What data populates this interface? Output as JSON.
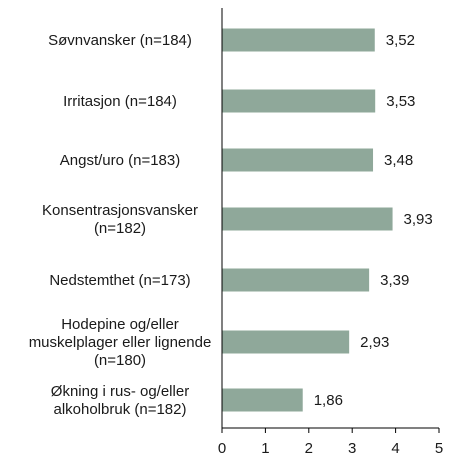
{
  "chart_data": {
    "type": "bar",
    "orientation": "horizontal",
    "categories": [
      [
        "Søvnvansker (n=184)"
      ],
      [
        "Irritasjon (n=184)"
      ],
      [
        "Angst/uro (n=183)"
      ],
      [
        "Konsentrasjonsvansker",
        "(n=182)"
      ],
      [
        "Nedstemthet (n=173)"
      ],
      [
        "Hodepine og/eller",
        "muskelplager eller lignende",
        "(n=180)"
      ],
      [
        "Økning i rus- og/eller",
        "alkoholbruk (n=182)"
      ]
    ],
    "values": [
      3.52,
      3.53,
      3.48,
      3.93,
      3.39,
      2.93,
      1.86
    ],
    "value_labels": [
      "3,52",
      "3,53",
      "3,48",
      "3,93",
      "3,39",
      "2,93",
      "1,86"
    ],
    "xlim": [
      0,
      5
    ],
    "x_ticks": [
      "0",
      "1",
      "2",
      "3",
      "4",
      "5"
    ],
    "bar_color": "#8fa89a",
    "grid": false,
    "legend": "none"
  }
}
